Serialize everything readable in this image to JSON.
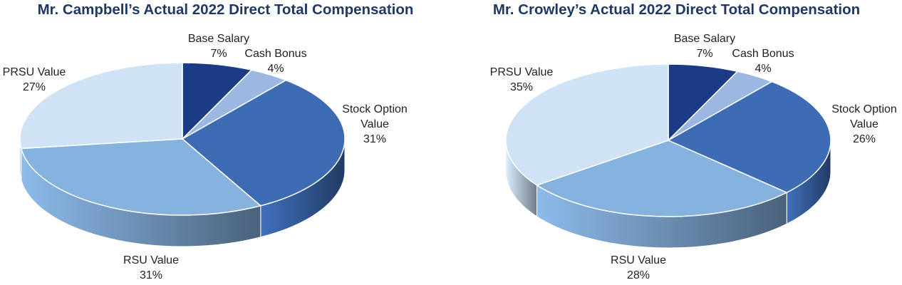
{
  "chart_data": [
    {
      "type": "pie",
      "title": "Mr. Campbell’s Actual 2022 Direct Total Compensation",
      "slices": [
        {
          "label": "Base Salary",
          "value": 7,
          "value_label": "7%",
          "color": "#1c3b87"
        },
        {
          "label": "Cash Bonus",
          "value": 4,
          "value_label": "4%",
          "color": "#9bb8e2"
        },
        {
          "label": "Stock Option Value",
          "value": 31,
          "value_label": "31%",
          "color": "#3d6cb5"
        },
        {
          "label": "RSU Value",
          "value": 31,
          "value_label": "31%",
          "color": "#86b2e0"
        },
        {
          "label": "PRSU Value",
          "value": 27,
          "value_label": "27%",
          "color": "#d0e3f6"
        }
      ]
    },
    {
      "type": "pie",
      "title": "Mr. Crowley’s Actual 2022 Direct Total Compensation",
      "slices": [
        {
          "label": "Base Salary",
          "value": 7,
          "value_label": "7%",
          "color": "#1c3b87"
        },
        {
          "label": "Cash Bonus",
          "value": 4,
          "value_label": "4%",
          "color": "#9bb8e2"
        },
        {
          "label": "Stock Option Value",
          "value": 26,
          "value_label": "26%",
          "color": "#3d6cb5"
        },
        {
          "label": "RSU Value",
          "value": 28,
          "value_label": "28%",
          "color": "#86b2e0"
        },
        {
          "label": "PRSU Value",
          "value": 35,
          "value_label": "35%",
          "color": "#d0e3f6"
        }
      ]
    }
  ]
}
